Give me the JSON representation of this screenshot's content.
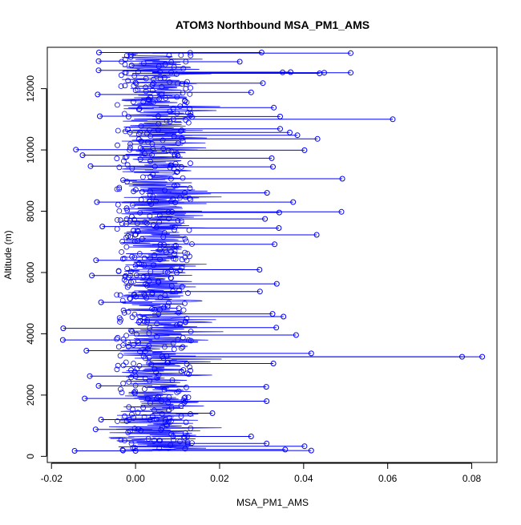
{
  "chart_data": {
    "type": "line",
    "title": "ATOM3 Northbound MSA_PM1_AMS",
    "xlabel": "MSA_PM1_AMS",
    "ylabel": "Altitude (m)",
    "xlim": [
      -0.021,
      0.086
    ],
    "ylim": [
      -200,
      13350
    ],
    "x_ticks": [
      -0.02,
      0.0,
      0.02,
      0.04,
      0.06,
      0.08
    ],
    "x_tick_labels": [
      "-0.02",
      "0.00",
      "0.02",
      "0.04",
      "0.06",
      "0.08"
    ],
    "y_ticks": [
      0,
      2000,
      4000,
      6000,
      8000,
      10000,
      12000
    ],
    "y_tick_labels": [
      "0",
      "2000",
      "4000",
      "6000",
      "8000",
      "10000",
      "12000"
    ],
    "grid": false,
    "legend": "none",
    "series_color": "#0000ff",
    "markers": "open-circle",
    "series": [
      {
        "points": [
          {
            "x": 0.0,
            "y": 180
          },
          {
            "x": -0.0145,
            "y": 180
          },
          {
            "x": 0.0418,
            "y": 190
          },
          {
            "x": 0.0356,
            "y": 220
          },
          {
            "x": 0.0402,
            "y": 330
          },
          {
            "x": 0.0312,
            "y": 420
          },
          {
            "x": -0.0095,
            "y": 880
          },
          {
            "x": 0.0275,
            "y": 650
          },
          {
            "x": -0.0082,
            "y": 1200
          },
          {
            "x": 0.0183,
            "y": 1410
          },
          {
            "x": -0.0121,
            "y": 1890
          },
          {
            "x": 0.0312,
            "y": 1800
          },
          {
            "x": -0.0088,
            "y": 2300
          },
          {
            "x": 0.0311,
            "y": 2270
          },
          {
            "x": -0.0109,
            "y": 2620
          },
          {
            "x": 0.0328,
            "y": 3030
          },
          {
            "x": 0.0825,
            "y": 3250
          },
          {
            "x": 0.0777,
            "y": 3250
          },
          {
            "x": 0.0418,
            "y": 3360
          },
          {
            "x": -0.0117,
            "y": 3450
          },
          {
            "x": -0.0173,
            "y": 3800
          },
          {
            "x": 0.0382,
            "y": 3960
          },
          {
            "x": -0.0172,
            "y": 4180
          },
          {
            "x": 0.0335,
            "y": 4200
          },
          {
            "x": 0.0352,
            "y": 4560
          },
          {
            "x": 0.0326,
            "y": 4650
          },
          {
            "x": -0.0082,
            "y": 5030
          },
          {
            "x": 0.0296,
            "y": 5380
          },
          {
            "x": 0.0336,
            "y": 5630
          },
          {
            "x": -0.0104,
            "y": 5900
          },
          {
            "x": 0.0295,
            "y": 6090
          },
          {
            "x": -0.0094,
            "y": 6400
          },
          {
            "x": 0.0331,
            "y": 6920
          },
          {
            "x": 0.0431,
            "y": 7230
          },
          {
            "x": -0.0079,
            "y": 7500
          },
          {
            "x": 0.0341,
            "y": 7450
          },
          {
            "x": 0.0308,
            "y": 7750
          },
          {
            "x": 0.0342,
            "y": 7960
          },
          {
            "x": 0.049,
            "y": 7980
          },
          {
            "x": -0.0092,
            "y": 8300
          },
          {
            "x": 0.0375,
            "y": 8300
          },
          {
            "x": 0.0313,
            "y": 8600
          },
          {
            "x": 0.0492,
            "y": 9060
          },
          {
            "x": -0.0107,
            "y": 9470
          },
          {
            "x": 0.0327,
            "y": 9450
          },
          {
            "x": 0.0324,
            "y": 9730
          },
          {
            "x": -0.0126,
            "y": 9830
          },
          {
            "x": -0.0142,
            "y": 10010
          },
          {
            "x": 0.0402,
            "y": 9990
          },
          {
            "x": 0.0433,
            "y": 10360
          },
          {
            "x": 0.0385,
            "y": 10480
          },
          {
            "x": 0.0367,
            "y": 10570
          },
          {
            "x": 0.0344,
            "y": 10690
          },
          {
            "x": 0.0612,
            "y": 11000
          },
          {
            "x": 0.0344,
            "y": 11090
          },
          {
            "x": -0.0085,
            "y": 11100
          },
          {
            "x": 0.0329,
            "y": 11380
          },
          {
            "x": 0.0275,
            "y": 11880
          },
          {
            "x": -0.009,
            "y": 11810
          },
          {
            "x": 0.0303,
            "y": 12180
          },
          {
            "x": 0.0449,
            "y": 12520
          },
          {
            "x": 0.0512,
            "y": 12520
          },
          {
            "x": 0.0438,
            "y": 12500
          },
          {
            "x": 0.0369,
            "y": 12540
          },
          {
            "x": 0.035,
            "y": 12530
          },
          {
            "x": -0.0088,
            "y": 12600
          },
          {
            "x": 0.0248,
            "y": 12880
          },
          {
            "x": -0.0088,
            "y": 12900
          },
          {
            "x": 0.0512,
            "y": 13160
          },
          {
            "x": -0.0087,
            "y": 13180
          },
          {
            "x": 0.03,
            "y": 13180
          }
        ]
      }
    ]
  }
}
